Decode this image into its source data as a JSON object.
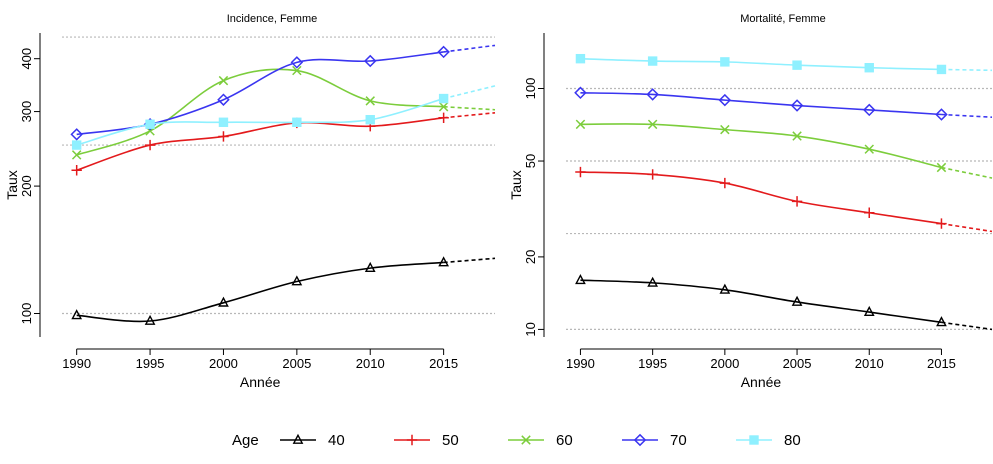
{
  "chart_data": [
    {
      "type": "line",
      "title": "Incidence, Femme",
      "xlabel": "Année",
      "ylabel": "Taux",
      "y_scale": "log",
      "xlim": [
        1989,
        2018.5
      ],
      "ylim": [
        88,
        460
      ],
      "x_ticks": [
        1990,
        1995,
        2000,
        2005,
        2010,
        2015
      ],
      "y_ticks": [
        100,
        200,
        300,
        400
      ],
      "ref_lines": [
        100,
        250,
        450
      ],
      "x": [
        1990,
        1995,
        2000,
        2005,
        2010,
        2015
      ],
      "projection_x": 2018.5,
      "series": [
        {
          "name": "40",
          "values": [
            99,
            96,
            106,
            119,
            128,
            132
          ],
          "projection": 135
        },
        {
          "name": "50",
          "values": [
            218,
            250,
            262,
            282,
            277,
            290
          ],
          "projection": 298
        },
        {
          "name": "60",
          "values": [
            237,
            270,
            355,
            375,
            318,
            308
          ],
          "projection": 303
        },
        {
          "name": "70",
          "values": [
            265,
            280,
            320,
            392,
            395,
            415
          ],
          "projection": 430
        },
        {
          "name": "80",
          "values": [
            250,
            280,
            283,
            283,
            287,
            322
          ],
          "projection": 345
        }
      ]
    },
    {
      "type": "line",
      "title": "Mortalité, Femme",
      "xlabel": "Année",
      "ylabel": "Taux",
      "y_scale": "log",
      "xlim": [
        1989,
        2018.5
      ],
      "ylim": [
        9.3,
        170
      ],
      "x_ticks": [
        1990,
        1995,
        2000,
        2005,
        2010,
        2015
      ],
      "y_ticks": [
        10,
        20,
        50,
        100
      ],
      "ref_lines": [
        10,
        25,
        50,
        100
      ],
      "x": [
        1990,
        1995,
        2000,
        2005,
        2010,
        2015
      ],
      "projection_x": 2018.5,
      "series": [
        {
          "name": "40",
          "values": [
            16,
            15.6,
            14.6,
            13,
            11.8,
            10.7
          ],
          "projection": 10
        },
        {
          "name": "50",
          "values": [
            45,
            44,
            40.5,
            34,
            30.5,
            27.5
          ],
          "projection": 25.5
        },
        {
          "name": "60",
          "values": [
            71,
            71,
            67.5,
            63.5,
            56,
            47
          ],
          "projection": 42.5
        },
        {
          "name": "70",
          "values": [
            96,
            94.5,
            89.5,
            85,
            81.5,
            78
          ],
          "projection": 76
        },
        {
          "name": "80",
          "values": [
            133,
            130,
            129,
            125,
            122,
            120
          ],
          "projection": 119
        }
      ]
    }
  ],
  "legend": {
    "title": "Age",
    "entries": [
      {
        "label": "40",
        "color": "#000000",
        "marker": "triangle"
      },
      {
        "label": "50",
        "color": "#e31a1c",
        "marker": "plus"
      },
      {
        "label": "60",
        "color": "#7ccd3c",
        "marker": "cross"
      },
      {
        "label": "70",
        "color": "#3a35f0",
        "marker": "diamond"
      },
      {
        "label": "80",
        "color": "#8ff0ff",
        "marker": "square"
      }
    ]
  }
}
